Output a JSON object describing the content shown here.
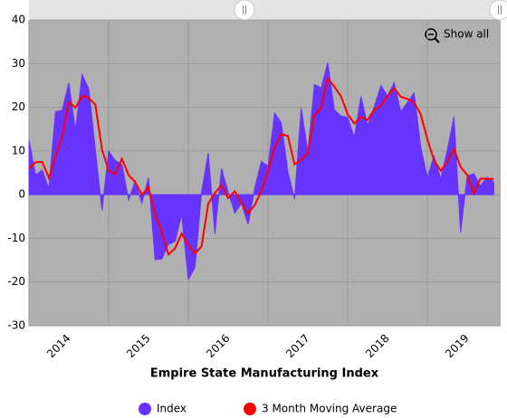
{
  "chart_data": {
    "type": "area",
    "title": "Empire State Manufacturing Index",
    "zoom_button": "Show all",
    "x": [
      2014,
      2014.0833,
      2014.1667,
      2014.25,
      2014.3333,
      2014.4167,
      2014.5,
      2014.5833,
      2014.6667,
      2014.75,
      2014.8333,
      2014.9167,
      2015,
      2015.0833,
      2015.1667,
      2015.25,
      2015.3333,
      2015.4167,
      2015.5,
      2015.5833,
      2015.6667,
      2015.75,
      2015.8333,
      2015.9167,
      2016,
      2016.0833,
      2016.1667,
      2016.25,
      2016.3333,
      2016.4167,
      2016.5,
      2016.5833,
      2016.6667,
      2016.75,
      2016.8333,
      2016.9167,
      2017,
      2017.0833,
      2017.1667,
      2017.25,
      2017.3333,
      2017.4167,
      2017.5,
      2017.5833,
      2017.6667,
      2017.75,
      2017.8333,
      2017.9167,
      2018,
      2018.0833,
      2018.1667,
      2018.25,
      2018.3333,
      2018.4167,
      2018.5,
      2018.5833,
      2018.6667,
      2018.75,
      2018.8333,
      2018.9167,
      2019,
      2019.0833,
      2019.1667,
      2019.25,
      2019.3333,
      2019.4167,
      2019.5,
      2019.5833,
      2019.6667,
      2019.75,
      2019.8333
    ],
    "series": [
      {
        "name": "Index",
        "type": "area",
        "color": "#6633ff",
        "values": [
          12.5,
          4.5,
          5.6,
          1.3,
          19,
          19.3,
          25.6,
          14.7,
          27.5,
          24.2,
          10.2,
          -3.6,
          10,
          7.8,
          6.9,
          -1.2,
          3.1,
          -2,
          3.9,
          -14.9,
          -14.7,
          -11.4,
          -10.7,
          -4.6,
          -19.4,
          -16.6,
          0.6,
          9.6,
          -9,
          6,
          0.6,
          -4.2,
          -2,
          -6.8,
          1.5,
          7.6,
          6.5,
          18.7,
          16.4,
          5.2,
          -1,
          19.8,
          9.8,
          25.2,
          24.4,
          30.2,
          19.4,
          18,
          17.7,
          13.1,
          22.5,
          15.8,
          20.1,
          25,
          22.6,
          25.6,
          19,
          21.1,
          23.3,
          10.9,
          3.9,
          8.8,
          3.7,
          10.1,
          17.8,
          -8.6,
          4.3,
          4.8,
          2,
          4,
          2.9
        ]
      },
      {
        "name": "3 Month Moving Average",
        "type": "line",
        "color": "#ff0000",
        "values": [
          6,
          7.4,
          7.5,
          3.8,
          8.6,
          13.2,
          21.3,
          19.9,
          22.6,
          22.1,
          20.6,
          10.3,
          5.5,
          4.7,
          8.2,
          4.5,
          2.9,
          0,
          1.7,
          -4.3,
          -8.6,
          -13.7,
          -12.3,
          -8.9,
          -11.6,
          -13.5,
          -11.8,
          -2.1,
          0.4,
          2.2,
          -0.8,
          0.8,
          -1.9,
          -4.3,
          -2.4,
          0.8,
          5.2,
          10.9,
          13.9,
          13.4,
          6.9,
          8,
          9.5,
          18.3,
          19.8,
          26.6,
          24.7,
          22.5,
          18.4,
          16.3,
          17.8,
          17.1,
          19.5,
          20.3,
          22.6,
          24.4,
          22.4,
          21.9,
          21.1,
          18.4,
          12.7,
          7.9,
          5.5,
          7.5,
          10.5,
          6.4,
          4.5,
          0.2,
          3.7,
          3.6,
          3.6
        ]
      }
    ],
    "xlim": [
      2014,
      2019.92
    ],
    "xticks": [
      {
        "value": 2014,
        "label": "2014"
      },
      {
        "value": 2015,
        "label": "2015"
      },
      {
        "value": 2016,
        "label": "2016"
      },
      {
        "value": 2017,
        "label": "2017"
      },
      {
        "value": 2018,
        "label": "2018"
      },
      {
        "value": 2019,
        "label": "2019"
      }
    ],
    "ylim": [
      -30,
      40
    ],
    "yticks": [
      -30,
      -20,
      -10,
      0,
      10,
      20,
      30,
      40
    ],
    "grid": true,
    "legend": "bottom"
  }
}
